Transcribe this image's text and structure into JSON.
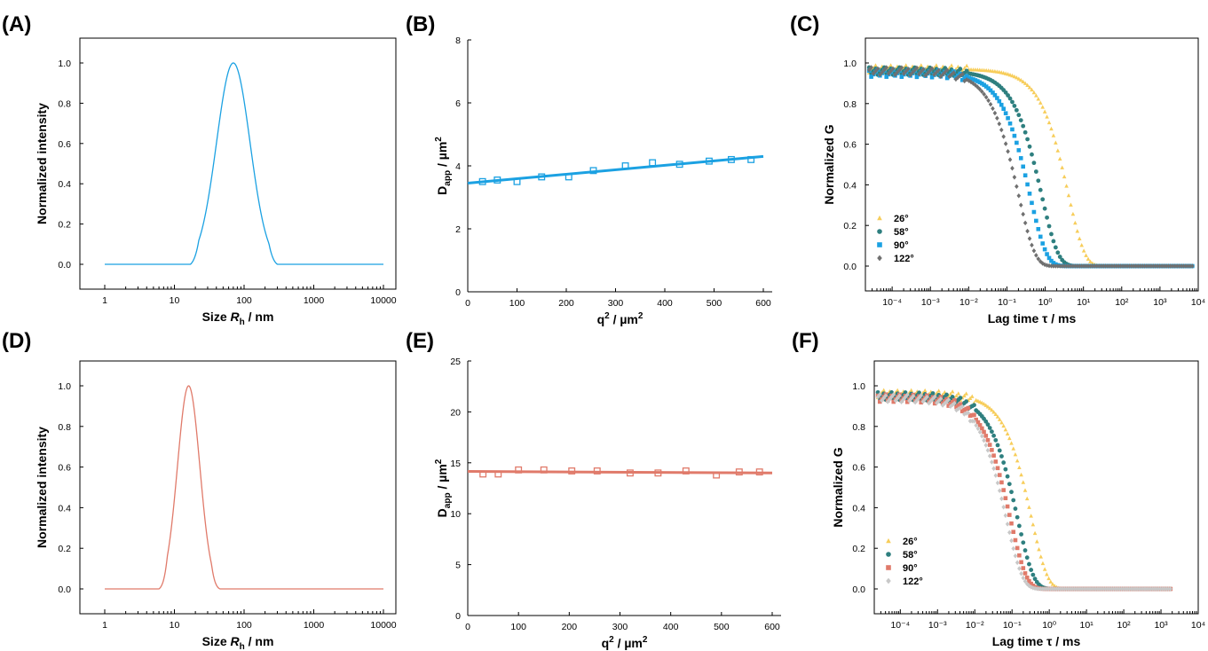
{
  "panels": {
    "A": {
      "label": "(A)",
      "xlabel_pre": "Size ",
      "xlabel_sym": "R",
      "xlabel_sub": "h",
      "xlabel_post": " / nm",
      "ylabel": "Normalized intensity"
    },
    "B": {
      "label": "(B)",
      "xlabel_main": "q",
      "xlabel_sup": "2",
      "xlabel_post": " / µm",
      "xlabel_sup2": "2",
      "ylabel_main": "D",
      "ylabel_sub": "app",
      "ylabel_post": " / µm",
      "ylabel_sup": "2"
    },
    "C": {
      "label": "(C)",
      "xlabel": "Lag time τ / ms",
      "ylabel": "Normalized G"
    },
    "D": {
      "label": "(D)",
      "xlabel_pre": "Size ",
      "xlabel_sym": "R",
      "xlabel_sub": "h",
      "xlabel_post": " / nm",
      "ylabel": "Normalized intensity"
    },
    "E": {
      "label": "(E)",
      "xlabel_main": "q",
      "xlabel_sup": "2",
      "xlabel_post": " / µm",
      "xlabel_sup2": "2",
      "ylabel_main": "D",
      "ylabel_sub": "app",
      "ylabel_post": " / µm",
      "ylabel_sup": "2"
    },
    "F": {
      "label": "(F)",
      "xlabel": "Lag time τ / ms",
      "ylabel": "Normalized G"
    }
  },
  "colors": {
    "blue": "#1ba1e2",
    "red": "#e07a6a",
    "s26": "#f7cd5a",
    "s58": "#2e7f7f",
    "s90_C": "#1ba1e2",
    "s90_F": "#e07a6a",
    "s122_C": "#707070",
    "s122_F": "#c8c8c8"
  },
  "chart_data": [
    {
      "panel": "A",
      "type": "line",
      "xscale": "log",
      "xlabel": "Size Rh / nm",
      "ylabel": "Normalized intensity",
      "xlim": [
        1,
        10000
      ],
      "ylim": [
        0,
        1.0
      ],
      "xticks": [
        "1",
        "10",
        "100",
        "1000",
        "10000"
      ],
      "yticks": [
        "0.0",
        "0.2",
        "0.4",
        "0.6",
        "0.8",
        "1.0"
      ],
      "series": [
        {
          "peak_x": 70,
          "log_sigma": 0.24,
          "support": [
            17,
            300
          ],
          "color": "blue"
        }
      ]
    },
    {
      "panel": "B",
      "type": "scatter",
      "xlabel": "q2 / µm2",
      "ylabel": "Dapp / µm2",
      "xlim": [
        0,
        600
      ],
      "ylim": [
        0,
        8
      ],
      "xticks": [
        "0",
        "100",
        "200",
        "300",
        "400",
        "500",
        "600"
      ],
      "yticks": [
        "0",
        "2",
        "4",
        "6",
        "8"
      ],
      "x": [
        30,
        60,
        100,
        150,
        205,
        255,
        320,
        375,
        430,
        490,
        535,
        575
      ],
      "y": [
        3.5,
        3.55,
        3.5,
        3.65,
        3.65,
        3.85,
        4.0,
        4.1,
        4.05,
        4.15,
        4.2,
        4.2
      ],
      "fit": {
        "x": [
          0,
          600
        ],
        "y": [
          3.45,
          4.3
        ]
      },
      "color": "blue"
    },
    {
      "panel": "C",
      "type": "scatter",
      "xscale": "log",
      "xlabel": "Lag time τ / ms",
      "ylabel": "Normalized G",
      "xlim": [
        2e-05,
        10000
      ],
      "ylim": [
        0,
        1.0
      ],
      "xticks": [
        "10⁻⁴",
        "10⁻³",
        "10⁻²",
        "10⁻¹",
        "10⁰",
        "10¹",
        "10²",
        "10³",
        "10⁴"
      ],
      "yticks": [
        "0.0",
        "0.2",
        "0.4",
        "0.6",
        "0.8",
        "1.0"
      ],
      "legend_position": "bottom-left",
      "series": [
        {
          "name": "26°",
          "marker": "triangle",
          "color": "s26",
          "tau": 4.0,
          "amp": 0.97
        },
        {
          "name": "58°",
          "marker": "circle",
          "color": "s58",
          "tau": 0.8,
          "amp": 0.96
        },
        {
          "name": "90°",
          "marker": "square",
          "color": "s90_C",
          "tau": 0.4,
          "amp": 0.95
        },
        {
          "name": "122°",
          "marker": "diamond",
          "color": "s122_C",
          "tau": 0.2,
          "amp": 0.96
        }
      ]
    },
    {
      "panel": "D",
      "type": "line",
      "xscale": "log",
      "xlabel": "Size Rh / nm",
      "ylabel": "Normalized intensity",
      "xlim": [
        1,
        10000
      ],
      "ylim": [
        0,
        1.0
      ],
      "xticks": [
        "1",
        "10",
        "100",
        "1000",
        "10000"
      ],
      "yticks": [
        "0.0",
        "0.2",
        "0.4",
        "0.6",
        "0.8",
        "1.0"
      ],
      "series": [
        {
          "peak_x": 16,
          "log_sigma": 0.16,
          "support": [
            6,
            45
          ],
          "color": "red"
        }
      ]
    },
    {
      "panel": "E",
      "type": "scatter",
      "xlabel": "q2 / µm2",
      "ylabel": "Dapp / µm2",
      "xlim": [
        0,
        600
      ],
      "ylim": [
        0,
        25
      ],
      "xticks": [
        "0",
        "100",
        "200",
        "300",
        "400",
        "500",
        "600"
      ],
      "yticks": [
        "0",
        "5",
        "10",
        "15",
        "20",
        "25"
      ],
      "x": [
        30,
        60,
        100,
        150,
        205,
        255,
        320,
        375,
        430,
        490,
        535,
        575
      ],
      "y": [
        13.9,
        13.9,
        14.3,
        14.3,
        14.2,
        14.2,
        14.0,
        14.0,
        14.2,
        13.8,
        14.1,
        14.1
      ],
      "fit": {
        "x": [
          0,
          600
        ],
        "y": [
          14.15,
          14.0
        ]
      },
      "color": "red"
    },
    {
      "panel": "F",
      "type": "scatter",
      "xscale": "log",
      "xlabel": "Lag time τ / ms",
      "ylabel": "Normalized G",
      "xlim": [
        2e-05,
        10000
      ],
      "ylim": [
        0,
        1.0
      ],
      "xticks": [
        "10⁻⁴",
        "10⁻³",
        "10⁻²",
        "10⁻¹",
        "10⁰",
        "10¹",
        "10²",
        "10³",
        "10⁴"
      ],
      "yticks": [
        "0.0",
        "0.2",
        "0.4",
        "0.6",
        "0.8",
        "1.0"
      ],
      "legend_position": "bottom-left",
      "series": [
        {
          "name": "26°",
          "marker": "triangle",
          "color": "s26",
          "tau": 0.33,
          "amp": 0.96
        },
        {
          "name": "58°",
          "marker": "circle",
          "color": "s58",
          "tau": 0.14,
          "amp": 0.95
        },
        {
          "name": "90°",
          "marker": "square",
          "color": "s90_F",
          "tau": 0.09,
          "amp": 0.94
        },
        {
          "name": "122°",
          "marker": "diamond",
          "color": "s122_F",
          "tau": 0.07,
          "amp": 0.94
        }
      ]
    }
  ]
}
